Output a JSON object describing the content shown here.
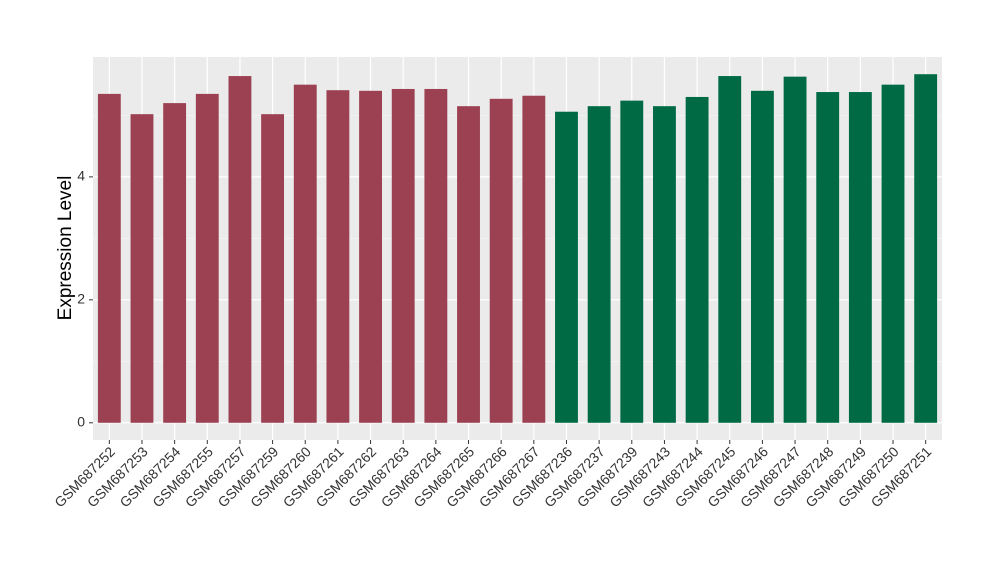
{
  "chart_data": {
    "type": "bar",
    "y_label": "Expression Level",
    "categories": [
      "GSM687252",
      "GSM687253",
      "GSM687254",
      "GSM687255",
      "GSM687257",
      "GSM687259",
      "GSM687260",
      "GSM687261",
      "GSM687262",
      "GSM687263",
      "GSM687264",
      "GSM687265",
      "GSM687266",
      "GSM687267",
      "GSM687236",
      "GSM687237",
      "GSM687239",
      "GSM687243",
      "GSM687244",
      "GSM687245",
      "GSM687246",
      "GSM687247",
      "GSM687248",
      "GSM687249",
      "GSM687250",
      "GSM687251"
    ],
    "values": [
      5.35,
      5.02,
      5.2,
      5.35,
      5.64,
      5.02,
      5.5,
      5.41,
      5.4,
      5.43,
      5.43,
      5.15,
      5.27,
      5.32,
      5.06,
      5.15,
      5.24,
      5.15,
      5.3,
      5.64,
      5.4,
      5.63,
      5.38,
      5.38,
      5.5,
      5.67
    ],
    "colors": [
      "#9b4151",
      "#9b4151",
      "#9b4151",
      "#9b4151",
      "#9b4151",
      "#9b4151",
      "#9b4151",
      "#9b4151",
      "#9b4151",
      "#9b4151",
      "#9b4151",
      "#9b4151",
      "#9b4151",
      "#9b4151",
      "#006a45",
      "#006a45",
      "#006a45",
      "#006a45",
      "#006a45",
      "#006a45",
      "#006a45",
      "#006a45",
      "#006a45",
      "#006a45",
      "#006a45",
      "#006a45"
    ],
    "ylim": [
      -0.28,
      5.95
    ],
    "yticks": [
      0,
      2,
      4
    ],
    "grid": true
  }
}
